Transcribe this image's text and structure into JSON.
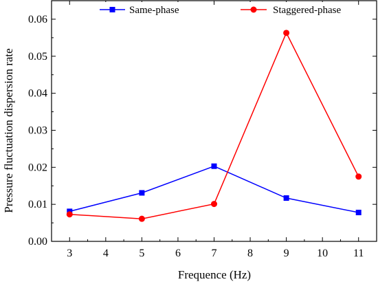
{
  "chart_data": {
    "type": "line",
    "xlabel": "Frequence (Hz)",
    "ylabel": "Pressure fluctuation dispersion rate",
    "xlim": [
      2.5,
      11.5
    ],
    "ylim": [
      0,
      0.065
    ],
    "xticks": [
      3,
      4,
      5,
      6,
      7,
      8,
      9,
      10,
      11
    ],
    "xtick_labels": [
      "3",
      "4",
      "5",
      "6",
      "7",
      "8",
      "9",
      "10",
      "11"
    ],
    "yticks": [
      0,
      0.01,
      0.02,
      0.03,
      0.04,
      0.05,
      0.06
    ],
    "ytick_labels": [
      "0.00",
      "0.01",
      "0.02",
      "0.03",
      "0.04",
      "0.05",
      "0.06"
    ],
    "grid": false,
    "legend_position": "top",
    "series": [
      {
        "name": "Same-phase",
        "color": "#0000ff",
        "marker": "square",
        "x": [
          3,
          5,
          7,
          9,
          11
        ],
        "y": [
          0.0081,
          0.0131,
          0.0203,
          0.0117,
          0.0078
        ]
      },
      {
        "name": "Staggered-phase",
        "color": "#ff0000",
        "marker": "circle",
        "x": [
          3,
          5,
          7,
          9,
          11
        ],
        "y": [
          0.0073,
          0.0061,
          0.0101,
          0.0563,
          0.0175
        ]
      }
    ]
  }
}
